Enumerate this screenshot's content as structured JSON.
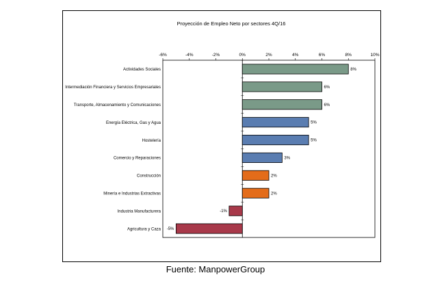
{
  "chart_data": {
    "type": "bar",
    "orientation": "horizontal",
    "title": "Proyección de Empleo Neto por sectores 4Q/16",
    "categories": [
      "Actividades Sociales",
      "Intermediación Financiera y Servicios Empresariales",
      "Transporte, Almacenamiento y Comunicaciones",
      "Energía Eléctrica, Gas y Agua",
      "Hostelería",
      "Comercio y Reparaciones",
      "Construcción",
      "Minería e Industrias Extractivas",
      "Industria Manufacturera",
      "Agricultura y Caza"
    ],
    "values": [
      8,
      6,
      6,
      5,
      5,
      3,
      2,
      2,
      -1,
      -5
    ],
    "data_labels": [
      "8%",
      "6%",
      "6%",
      "5%",
      "5%",
      "3%",
      "2%",
      "2%",
      "-1%",
      "-5%"
    ],
    "bar_colors": [
      "#7a9a88",
      "#7a9a88",
      "#7a9a88",
      "#5a7db1",
      "#5a7db1",
      "#5a7db1",
      "#e36c1a",
      "#e36c1a",
      "#a8394a",
      "#a8394a"
    ],
    "xlim": [
      -6,
      10
    ],
    "xticks": [
      -6,
      -4,
      -2,
      0,
      2,
      4,
      6,
      8,
      10
    ],
    "xtick_labels": [
      "-6%",
      "-4%",
      "-2%",
      "0%",
      "2%",
      "4%",
      "6%",
      "8%",
      "10%"
    ],
    "xlabel": "",
    "ylabel": "",
    "grid": false,
    "legend": "none"
  },
  "source_caption": "Fuente: ManpowerGroup"
}
